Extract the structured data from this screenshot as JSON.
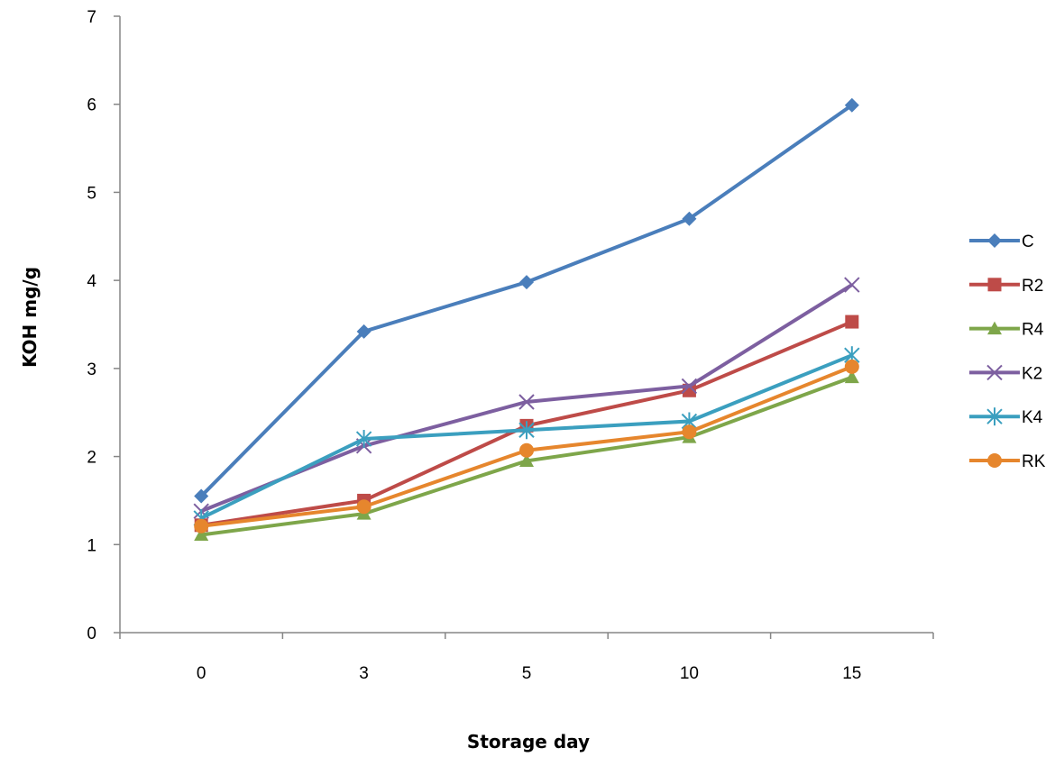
{
  "chart_data": {
    "type": "line",
    "title": "",
    "xlabel": "Storage day",
    "ylabel": "KOH mg/g",
    "categories": [
      "0",
      "3",
      "5",
      "10",
      "15"
    ],
    "ylim": [
      0,
      7
    ],
    "yticks": [
      0,
      1,
      2,
      3,
      4,
      5,
      6,
      7
    ],
    "grid": false,
    "legend": "right",
    "series": [
      {
        "name": "C",
        "color": "#4a7ebb",
        "marker": "diamond",
        "values": [
          1.55,
          3.42,
          3.98,
          4.7,
          5.99
        ]
      },
      {
        "name": "R2",
        "color": "#be4b48",
        "marker": "square",
        "values": [
          1.22,
          1.5,
          2.35,
          2.75,
          3.53
        ]
      },
      {
        "name": "R4",
        "color": "#7ea64a",
        "marker": "triangle",
        "values": [
          1.11,
          1.35,
          1.95,
          2.22,
          2.9
        ]
      },
      {
        "name": "K2",
        "color": "#7d5fa0",
        "marker": "x",
        "values": [
          1.38,
          2.12,
          2.62,
          2.8,
          3.95
        ]
      },
      {
        "name": "K4",
        "color": "#3b9fbf",
        "marker": "star",
        "values": [
          1.3,
          2.2,
          2.3,
          2.4,
          3.15
        ]
      },
      {
        "name": "RK",
        "color": "#e6862d",
        "marker": "circle",
        "values": [
          1.21,
          1.43,
          2.07,
          2.28,
          3.02
        ]
      }
    ]
  }
}
